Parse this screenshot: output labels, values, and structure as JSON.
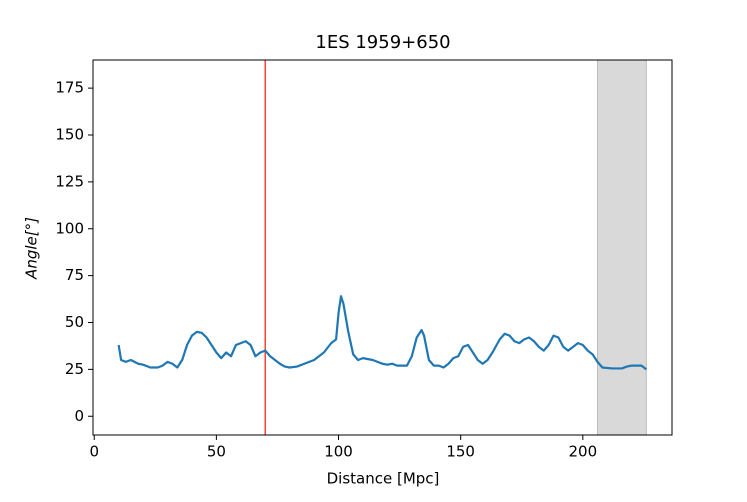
{
  "chart_data": {
    "type": "line",
    "title": "1ES 1959+650",
    "xlabel": "Distance [Mpc]",
    "ylabel": "Angle[°]",
    "x": [
      10,
      11,
      13,
      15,
      18,
      20,
      23,
      26,
      28,
      30,
      32,
      34,
      36,
      38,
      40,
      42,
      44,
      46,
      48,
      50,
      52,
      54,
      56,
      58,
      60,
      62,
      64,
      66,
      68,
      70,
      72,
      74,
      76,
      78,
      80,
      83,
      86,
      90,
      94,
      97,
      99,
      100,
      101,
      102,
      104,
      106,
      108,
      110,
      114,
      118,
      120,
      122,
      124,
      128,
      130,
      132,
      134,
      135,
      137,
      139,
      141,
      143,
      145,
      147,
      149,
      151,
      153,
      155,
      157,
      159,
      161,
      163,
      166,
      168,
      170,
      172,
      174,
      176,
      178,
      180,
      182,
      184,
      186,
      188,
      190,
      192,
      194,
      196,
      198,
      200,
      202,
      204,
      206,
      208,
      212,
      216,
      218,
      220,
      224,
      226
    ],
    "values": [
      38,
      30,
      29,
      30,
      28,
      27.5,
      26,
      26,
      27,
      29,
      28,
      26,
      30,
      38,
      43,
      45,
      44.5,
      42,
      38,
      34,
      31,
      34,
      32,
      38,
      39,
      40,
      38,
      32,
      34,
      35,
      32,
      30,
      28,
      26.5,
      26,
      26.5,
      28,
      30,
      34,
      39,
      41,
      55,
      64,
      60,
      45,
      33,
      30,
      31,
      30,
      28,
      27.5,
      28,
      27,
      27,
      32,
      42,
      46,
      43,
      30,
      27,
      27,
      26,
      28,
      31,
      32,
      37,
      38,
      34,
      30,
      28,
      30,
      34,
      41,
      44,
      43,
      40,
      39,
      41,
      42,
      40,
      37,
      35,
      38,
      43,
      42,
      37,
      35,
      37,
      39,
      38,
      35,
      33,
      29,
      26,
      25.5,
      25.5,
      26.5,
      27,
      27,
      25
    ],
    "color": "#1f77b4",
    "vline": {
      "x": 70,
      "color": "#f44336"
    },
    "span": {
      "range": [
        206,
        226
      ],
      "color": "#d9d9d9"
    },
    "xlim": [
      -0.5,
      236.5
    ],
    "ylim": [
      -10,
      190
    ],
    "xticks": [
      0,
      50,
      100,
      150,
      200
    ],
    "yticks": [
      0,
      25,
      50,
      75,
      100,
      125,
      150,
      175
    ]
  }
}
